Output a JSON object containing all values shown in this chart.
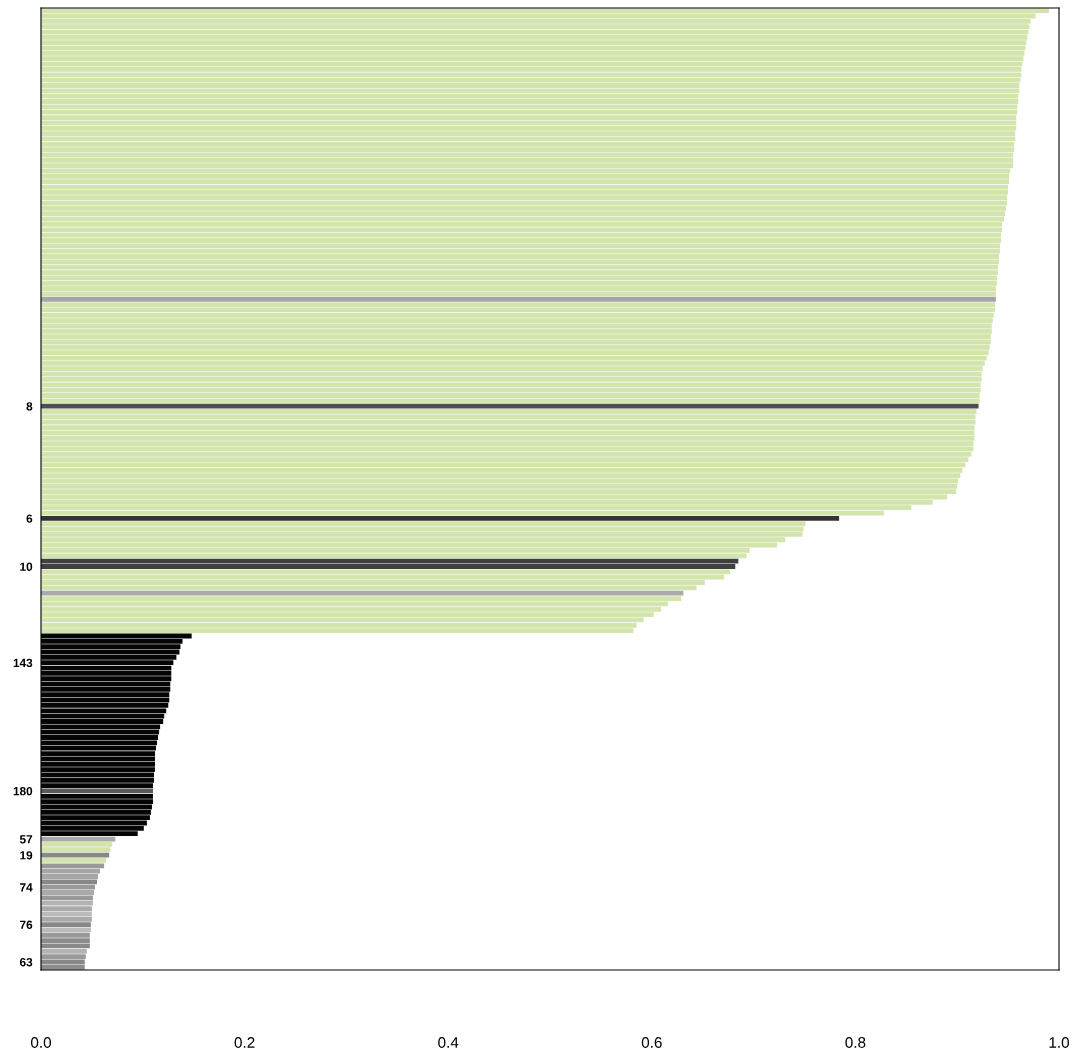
{
  "chart_data": {
    "type": "bar",
    "orientation": "horizontal",
    "categories": [
      null,
      null,
      null,
      null,
      null,
      null,
      null,
      null,
      null,
      null,
      null,
      null,
      null,
      null,
      null,
      null,
      null,
      null,
      null,
      null,
      null,
      null,
      null,
      null,
      null,
      null,
      null,
      null,
      null,
      null,
      null,
      null,
      null,
      null,
      null,
      null,
      null,
      null,
      null,
      null,
      null,
      null,
      null,
      null,
      null,
      null,
      null,
      null,
      null,
      null,
      null,
      null,
      null,
      null,
      null,
      null,
      null,
      null,
      null,
      null,
      null,
      null,
      null,
      null,
      null,
      null,
      null,
      null,
      null,
      null,
      null,
      null,
      null,
      null,
      "8",
      null,
      null,
      null,
      null,
      null,
      null,
      null,
      null,
      null,
      null,
      null,
      null,
      null,
      null,
      null,
      null,
      null,
      null,
      null,
      null,
      "6",
      null,
      null,
      null,
      null,
      null,
      null,
      null,
      null,
      "10",
      null,
      null,
      null,
      null,
      null,
      null,
      null,
      null,
      null,
      null,
      null,
      null,
      null,
      null,
      null,
      null,
      null,
      "143",
      null,
      null,
      null,
      null,
      null,
      null,
      null,
      null,
      null,
      null,
      null,
      null,
      null,
      null,
      null,
      null,
      null,
      null,
      null,
      null,
      null,
      null,
      null,
      "180",
      null,
      null,
      null,
      null,
      null,
      null,
      null,
      null,
      "57",
      null,
      null,
      "19",
      null,
      null,
      null,
      null,
      null,
      "74",
      null,
      null,
      null,
      null,
      null,
      null,
      "76",
      null,
      null,
      null,
      null,
      null,
      null,
      "63",
      null
    ],
    "values": [
      0.99,
      0.977,
      0.972,
      0.971,
      0.97,
      0.969,
      0.968,
      0.967,
      0.966,
      0.965,
      0.964,
      0.963,
      0.963,
      0.962,
      0.961,
      0.961,
      0.96,
      0.96,
      0.959,
      0.959,
      0.958,
      0.958,
      0.958,
      0.957,
      0.957,
      0.956,
      0.956,
      0.955,
      0.955,
      0.955,
      0.952,
      0.951,
      0.951,
      0.95,
      0.95,
      0.949,
      0.949,
      0.948,
      0.947,
      0.946,
      0.944,
      0.944,
      0.943,
      0.943,
      0.942,
      0.942,
      0.941,
      0.941,
      0.94,
      0.94,
      0.939,
      0.939,
      0.938,
      0.938,
      0.938,
      0.937,
      0.937,
      0.936,
      0.935,
      0.934,
      0.934,
      0.933,
      0.933,
      0.932,
      0.931,
      0.929,
      0.927,
      0.925,
      0.924,
      0.924,
      0.923,
      0.923,
      0.922,
      0.922,
      0.921,
      0.919,
      0.918,
      0.918,
      0.917,
      0.917,
      0.917,
      0.916,
      0.916,
      0.914,
      0.911,
      0.908,
      0.905,
      0.903,
      0.901,
      0.9,
      0.899,
      0.89,
      0.876,
      0.855,
      0.828,
      0.784,
      0.751,
      0.749,
      0.748,
      0.731,
      0.723,
      0.696,
      0.693,
      0.685,
      0.682,
      0.677,
      0.671,
      0.652,
      0.644,
      0.631,
      0.629,
      0.616,
      0.609,
      0.602,
      0.592,
      0.585,
      0.582,
      0.148,
      0.139,
      0.137,
      0.136,
      0.133,
      0.13,
      0.128,
      0.128,
      0.128,
      0.127,
      0.127,
      0.126,
      0.126,
      0.125,
      0.123,
      0.121,
      0.12,
      0.117,
      0.116,
      0.115,
      0.114,
      0.113,
      0.112,
      0.112,
      0.112,
      0.112,
      0.111,
      0.111,
      0.11,
      0.11,
      0.11,
      0.11,
      0.109,
      0.108,
      0.107,
      0.104,
      0.101,
      0.095,
      0.073,
      0.07,
      0.068,
      0.067,
      0.064,
      0.062,
      0.058,
      0.056,
      0.055,
      0.053,
      0.052,
      0.051,
      0.051,
      0.05,
      0.05,
      0.05,
      0.049,
      0.049,
      0.048,
      0.048,
      0.048,
      0.045,
      0.044,
      0.043,
      0.043
    ],
    "colors": [
      "#d3e5ad",
      "#d3e5ad",
      "#d3e5ad",
      "#d3e5ad",
      "#d3e5ad",
      "#d3e5ad",
      "#d3e5ad",
      "#d3e5ad",
      "#d3e5ad",
      "#d3e5ad",
      "#d3e5ad",
      "#d3e5ad",
      "#d3e5ad",
      "#d3e5ad",
      "#d3e5ad",
      "#d3e5ad",
      "#d3e5ad",
      "#d3e5ad",
      "#d3e5ad",
      "#d3e5ad",
      "#d3e5ad",
      "#d3e5ad",
      "#d3e5ad",
      "#d3e5ad",
      "#d3e5ad",
      "#d3e5ad",
      "#d3e5ad",
      "#d3e5ad",
      "#d3e5ad",
      "#d3e5ad",
      "#d3e5ad",
      "#d3e5ad",
      "#d3e5ad",
      "#d3e5ad",
      "#d3e5ad",
      "#d3e5ad",
      "#d3e5ad",
      "#d3e5ad",
      "#d3e5ad",
      "#d3e5ad",
      "#d3e5ad",
      "#d3e5ad",
      "#d3e5ad",
      "#d3e5ad",
      "#d3e5ad",
      "#d3e5ad",
      "#d3e5ad",
      "#d3e5ad",
      "#d3e5ad",
      "#d3e5ad",
      "#d3e5ad",
      "#d3e5ad",
      "#d3e5ad",
      "#d3e5ad",
      "#a6a6a6",
      "#d3e5ad",
      "#d3e5ad",
      "#d3e5ad",
      "#d3e5ad",
      "#d3e5ad",
      "#d3e5ad",
      "#d3e5ad",
      "#d3e5ad",
      "#d3e5ad",
      "#d3e5ad",
      "#d3e5ad",
      "#d3e5ad",
      "#d3e5ad",
      "#d3e5ad",
      "#d3e5ad",
      "#d3e5ad",
      "#d3e5ad",
      "#d3e5ad",
      "#d3e5ad",
      "#4d4d4d",
      "#d3e5ad",
      "#d3e5ad",
      "#d3e5ad",
      "#d3e5ad",
      "#d3e5ad",
      "#d3e5ad",
      "#d3e5ad",
      "#d3e5ad",
      "#d3e5ad",
      "#d3e5ad",
      "#d3e5ad",
      "#d3e5ad",
      "#d3e5ad",
      "#d3e5ad",
      "#d3e5ad",
      "#d3e5ad",
      "#d3e5ad",
      "#d3e5ad",
      "#d3e5ad",
      "#d3e5ad",
      "#333333",
      "#d3e5ad",
      "#d3e5ad",
      "#d3e5ad",
      "#d3e5ad",
      "#d3e5ad",
      "#d3e5ad",
      "#d3e5ad",
      "#404040",
      "#404040",
      "#d3e5ad",
      "#d3e5ad",
      "#d3e5ad",
      "#d3e5ad",
      "#aaaaaa",
      "#d3e5ad",
      "#d3e5ad",
      "#d3e5ad",
      "#d3e5ad",
      "#d3e5ad",
      "#d3e5ad",
      "#d3e5ad",
      "#050505",
      "#050505",
      "#050505",
      "#050505",
      "#050505",
      "#050505",
      "#050505",
      "#050505",
      "#050505",
      "#050505",
      "#050505",
      "#050505",
      "#050505",
      "#050505",
      "#050505",
      "#050505",
      "#050505",
      "#050505",
      "#050505",
      "#050505",
      "#050505",
      "#050505",
      "#050505",
      "#050505",
      "#050505",
      "#050505",
      "#050505",
      "#050505",
      "#050505",
      "#5a5a5a",
      "#050505",
      "#050505",
      "#050505",
      "#050505",
      "#050505",
      "#050505",
      "#050505",
      "#050505",
      "#a8a8a8",
      "#d3e5ad",
      "#d3e5ad",
      "#888888",
      "#d3e5ad",
      "#999999",
      "#a6a6a6",
      "#a6a6a6",
      "#888888",
      "#999999",
      "#aaaaaa",
      "#999999",
      "#b3b3b3",
      "#aaaaaa",
      "#bbbbbb",
      "#aaaaaa",
      "#888888",
      "#bbbbbb",
      "#999999",
      "#8c8c8c",
      "#888888",
      "#b3b3b3",
      "#999999",
      "#888888",
      "#8c8c8c"
    ],
    "xlim": [
      0,
      1
    ],
    "xticks": [
      {
        "value": 0,
        "label": "0.0"
      },
      {
        "value": 0.2,
        "label": "0.2"
      },
      {
        "value": 0.4,
        "label": "0.4"
      },
      {
        "value": 0.6,
        "label": "0.6"
      },
      {
        "value": 0.8,
        "label": "0.8"
      },
      {
        "value": 1,
        "label": "1.0"
      }
    ],
    "grid": false
  }
}
